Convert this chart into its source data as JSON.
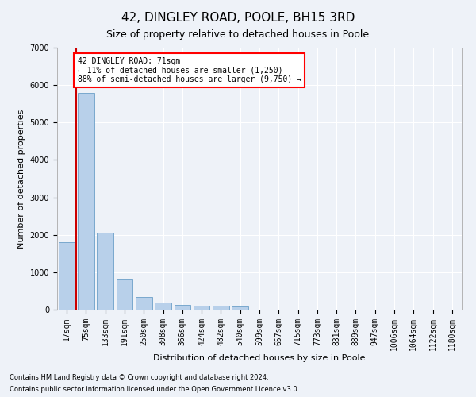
{
  "title": "42, DINGLEY ROAD, POOLE, BH15 3RD",
  "subtitle": "Size of property relative to detached houses in Poole",
  "xlabel": "Distribution of detached houses by size in Poole",
  "ylabel": "Number of detached properties",
  "footnote1": "Contains HM Land Registry data © Crown copyright and database right 2024.",
  "footnote2": "Contains public sector information licensed under the Open Government Licence v3.0.",
  "annotation_line1": "42 DINGLEY ROAD: 71sqm",
  "annotation_line2": "← 11% of detached houses are smaller (1,250)",
  "annotation_line3": "88% of semi-detached houses are larger (9,750) →",
  "bar_color": "#b8d0ea",
  "bar_edge_color": "#6a9fc8",
  "marker_color": "#cc0000",
  "categories": [
    "17sqm",
    "75sqm",
    "133sqm",
    "191sqm",
    "250sqm",
    "308sqm",
    "366sqm",
    "424sqm",
    "482sqm",
    "540sqm",
    "599sqm",
    "657sqm",
    "715sqm",
    "773sqm",
    "831sqm",
    "889sqm",
    "947sqm",
    "1006sqm",
    "1064sqm",
    "1122sqm",
    "1180sqm"
  ],
  "values": [
    1800,
    5800,
    2050,
    800,
    340,
    200,
    120,
    110,
    100,
    75,
    0,
    0,
    0,
    0,
    0,
    0,
    0,
    0,
    0,
    0,
    0
  ],
  "ylim": [
    0,
    7000
  ],
  "yticks": [
    0,
    1000,
    2000,
    3000,
    4000,
    5000,
    6000,
    7000
  ],
  "background_color": "#eef2f8",
  "grid_color": "#ffffff",
  "title_fontsize": 11,
  "subtitle_fontsize": 9,
  "axis_label_fontsize": 8,
  "tick_fontsize": 7,
  "annotation_fontsize": 7,
  "footnote_fontsize": 6
}
